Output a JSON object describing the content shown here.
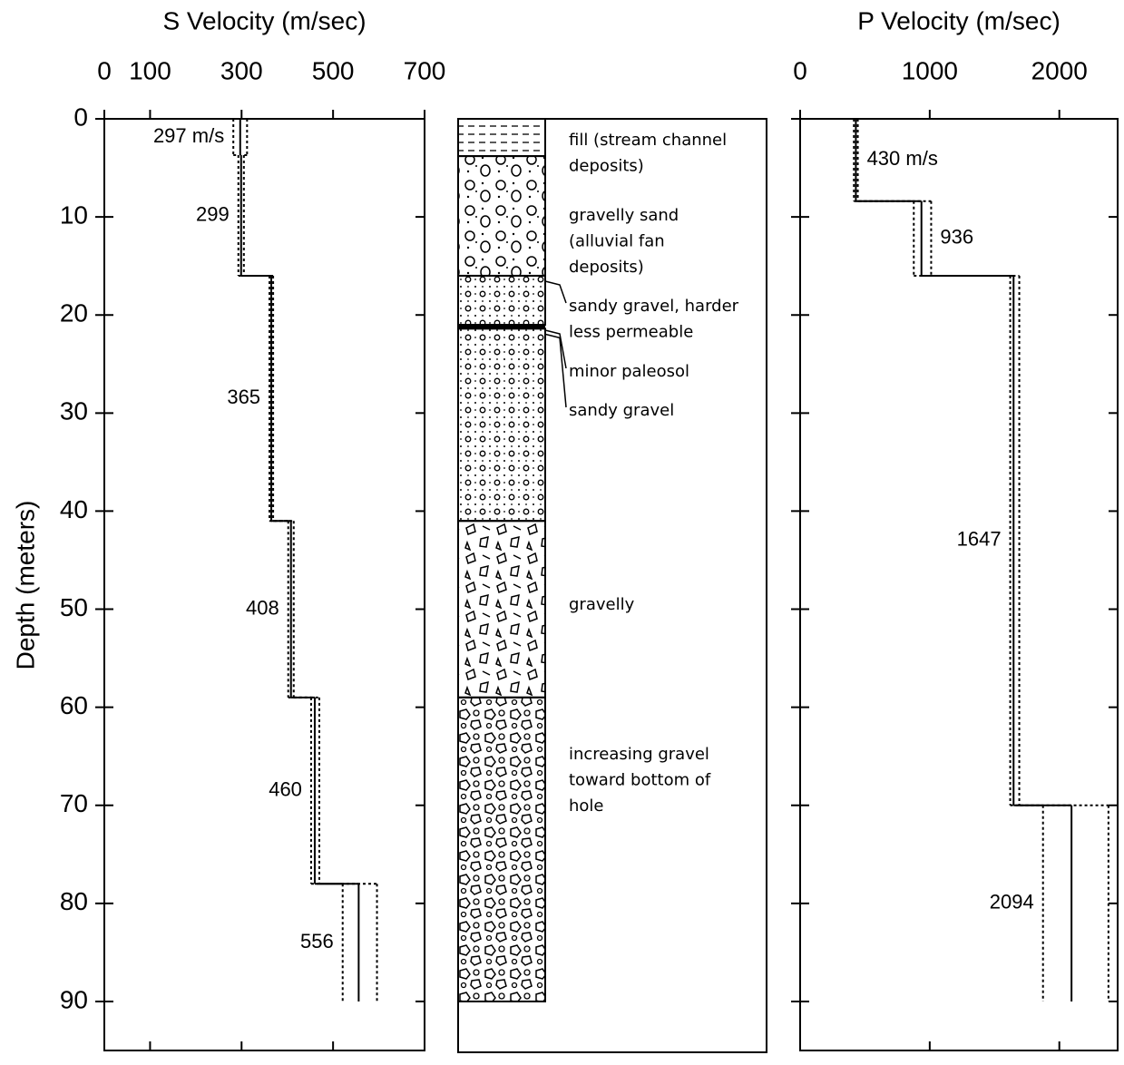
{
  "chart_data": [
    {
      "type": "step",
      "title": "S Velocity (m/sec)",
      "ylabel": "Depth (meters)",
      "xlim": [
        0,
        700
      ],
      "xticks": [
        0,
        100,
        300,
        500,
        700
      ],
      "ylim": [
        0,
        95
      ],
      "yticks": [
        0,
        10,
        20,
        30,
        40,
        50,
        60,
        70,
        80,
        90
      ],
      "y_inverted": true,
      "depths": [
        0,
        3.7,
        16,
        41,
        59,
        78,
        90
      ],
      "values": [
        297,
        299,
        365,
        408,
        460,
        556
      ],
      "value_labels": [
        "297 m/s",
        "299",
        "365",
        "408",
        "460",
        "556"
      ],
      "low": [
        282,
        293,
        361,
        402,
        452,
        521
      ],
      "high": [
        312,
        305,
        369,
        414,
        470,
        596
      ],
      "color": "#000000"
    },
    {
      "type": "step",
      "title": "P Velocity (m/sec)",
      "xlim": [
        0,
        2450
      ],
      "xticks": [
        0,
        1000,
        2000
      ],
      "ylim": [
        0,
        95
      ],
      "yticks": [
        0,
        10,
        20,
        30,
        40,
        50,
        60,
        70,
        80,
        90
      ],
      "y_inverted": true,
      "depths": [
        0,
        8.4,
        16,
        70,
        90
      ],
      "values": [
        430,
        936,
        1647,
        2094
      ],
      "value_labels": [
        "430 m/s",
        "936",
        "1647",
        "2094"
      ],
      "low": [
        415,
        877,
        1621,
        1874
      ],
      "high": [
        445,
        1011,
        1691,
        2379
      ],
      "color": "#000000"
    }
  ],
  "lithology": {
    "depths": [
      0,
      3.8,
      16,
      21,
      21.4,
      41,
      59,
      90
    ],
    "layers": [
      {
        "pattern": "fill",
        "label": [
          "fill (stream channel",
          "deposits)"
        ]
      },
      {
        "pattern": "gsand",
        "label": [
          "gravelly sand",
          " (alluvial fan",
          "deposits)"
        ]
      },
      {
        "pattern": "sgravel",
        "label": [
          "sandy gravel, harder",
          "less permeable"
        ]
      },
      {
        "pattern": "line",
        "label": [
          "minor paleosol"
        ]
      },
      {
        "pattern": "sgravel",
        "label": [
          "sandy gravel"
        ]
      },
      {
        "pattern": "gravelly",
        "label": [
          "gravelly"
        ]
      },
      {
        "pattern": "incr",
        "label": [
          "increasing gravel",
          "toward bottom of",
          "hole"
        ]
      }
    ]
  }
}
